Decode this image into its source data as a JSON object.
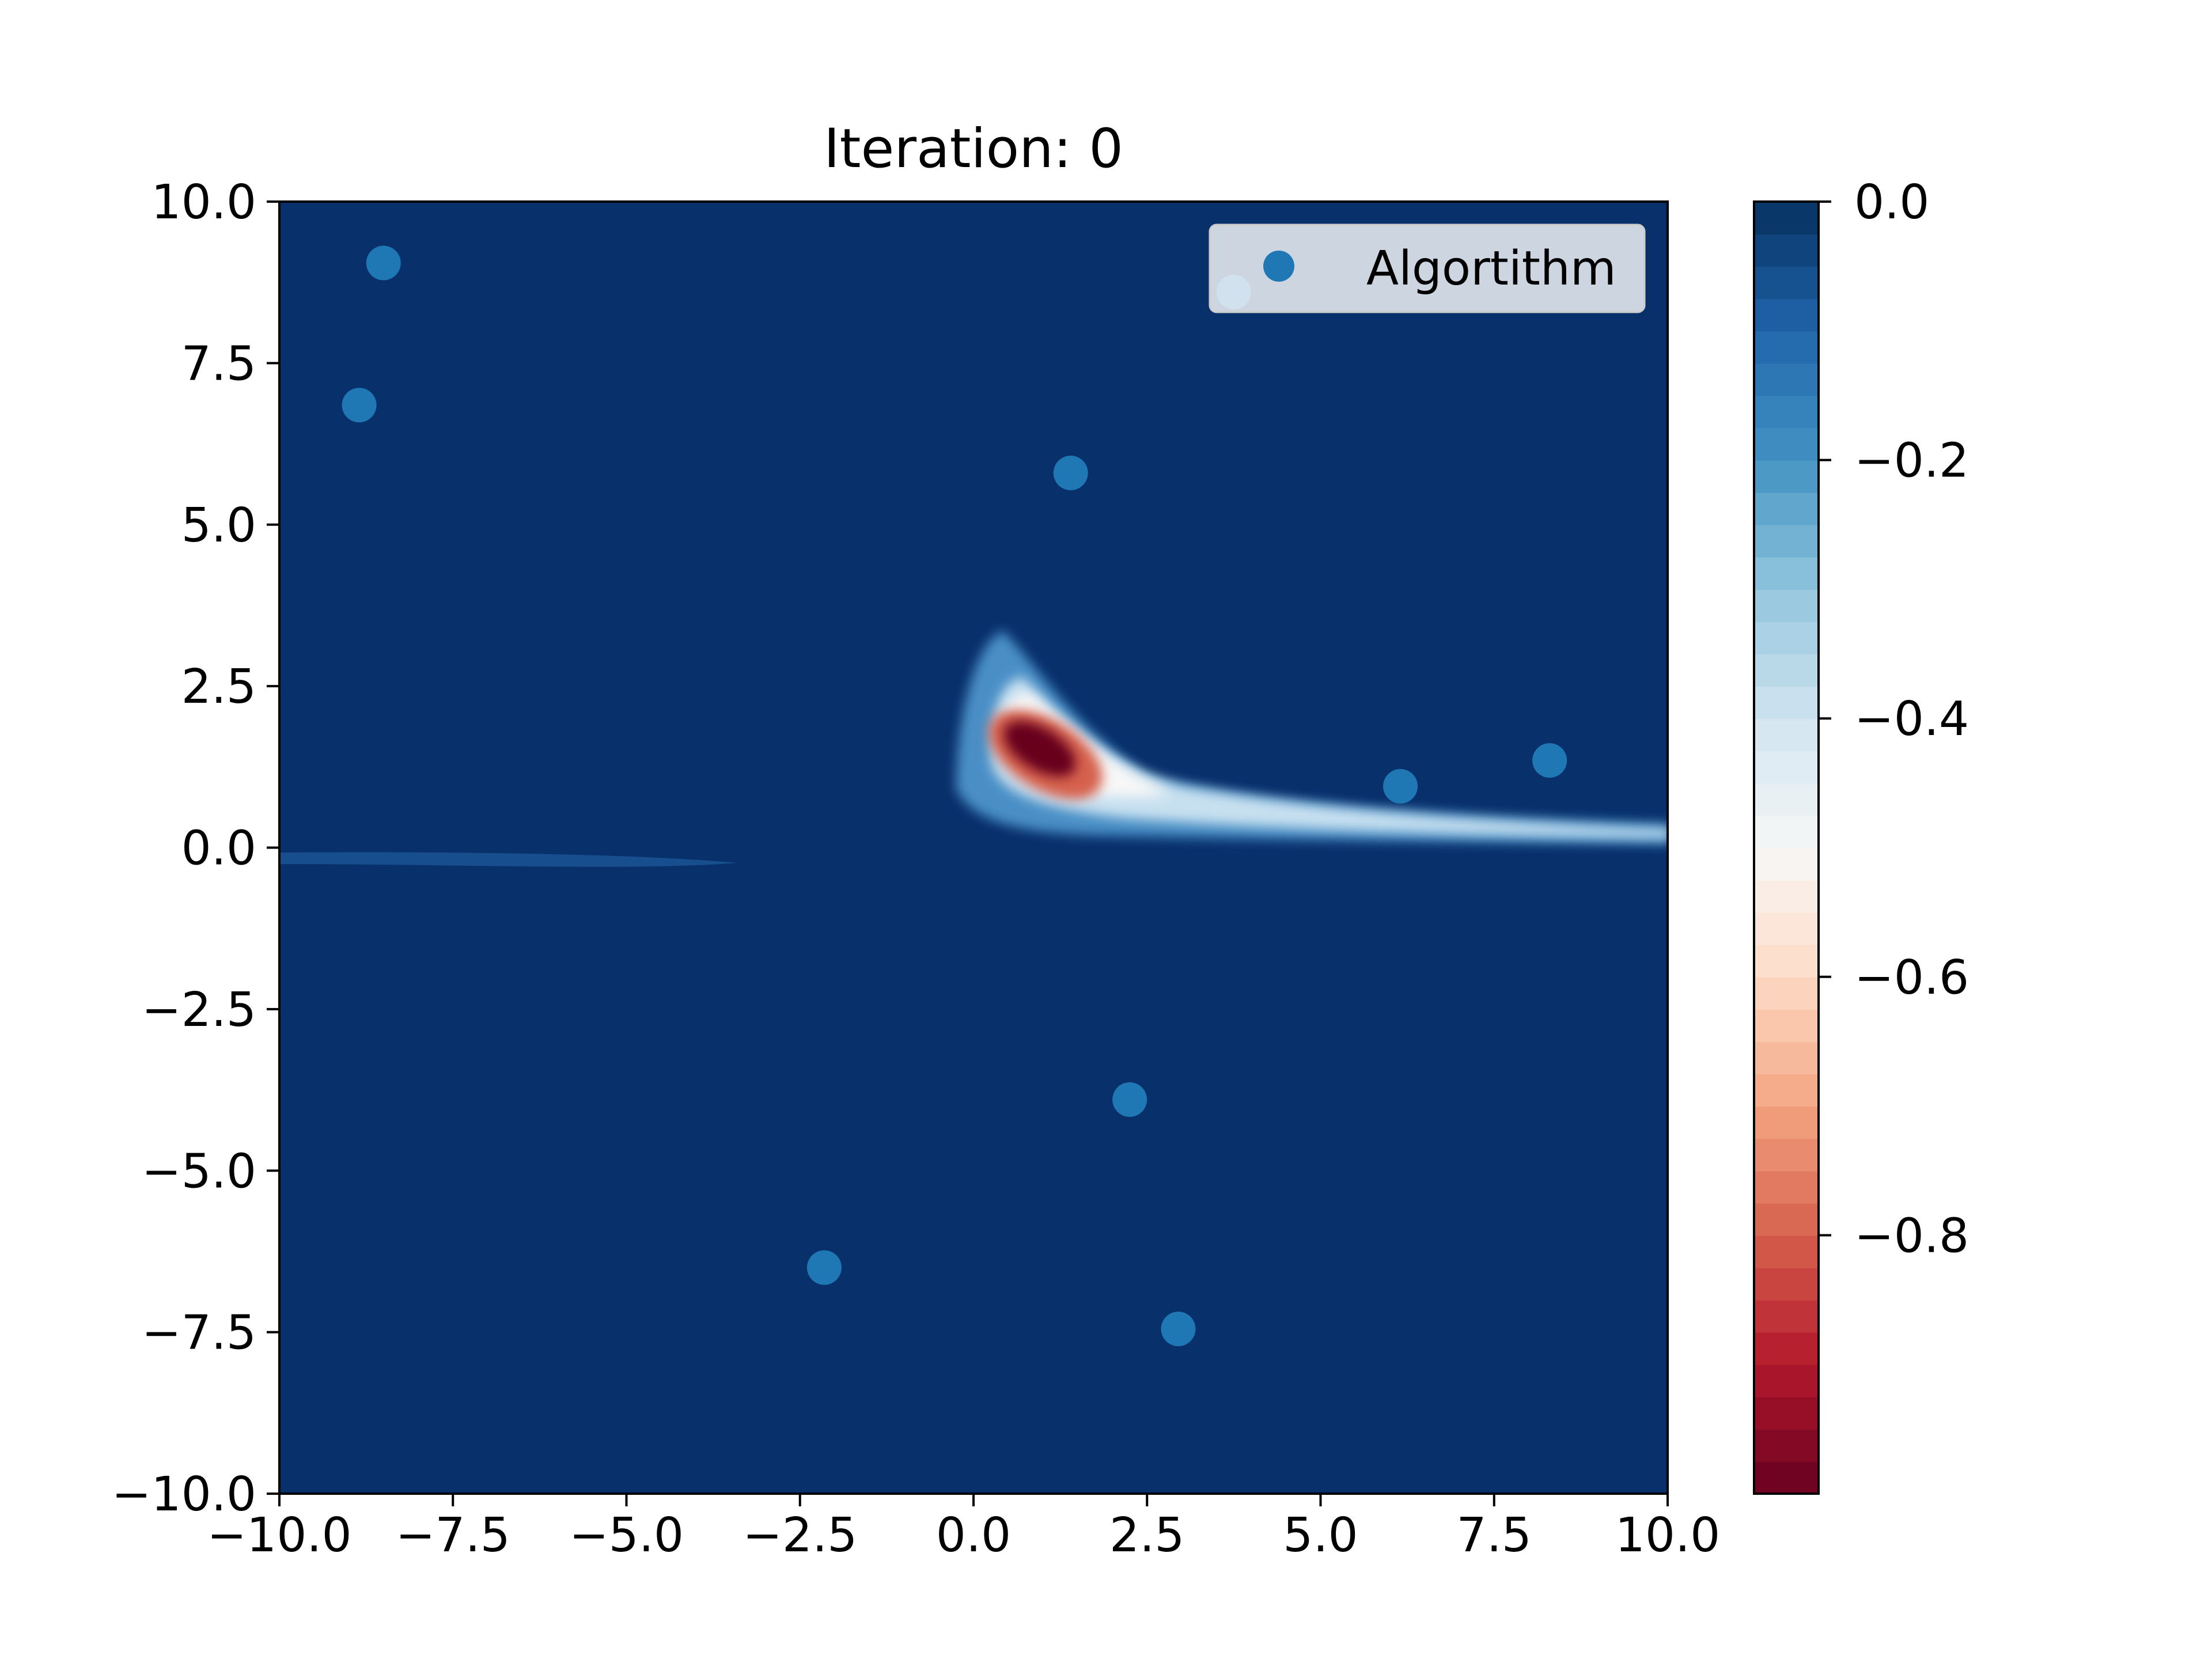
{
  "chart_data": {
    "type": "scatter",
    "title": "Iteration: 0",
    "xlabel": "",
    "ylabel": "",
    "xlim": [
      -10,
      10
    ],
    "ylim": [
      -10,
      10
    ],
    "x_ticks": [
      "−10.0",
      "−7.5",
      "−5.0",
      "−2.5",
      "0.0",
      "2.5",
      "5.0",
      "7.5",
      "10.0"
    ],
    "y_ticks": [
      "−10.0",
      "−7.5",
      "−5.0",
      "−2.5",
      "0.0",
      "2.5",
      "5.0",
      "7.5",
      "10.0"
    ],
    "x_tick_values": [
      -10,
      -7.5,
      -5,
      -2.5,
      0,
      2.5,
      5,
      7.5,
      10
    ],
    "y_tick_values": [
      -10,
      -7.5,
      -5,
      -2.5,
      0,
      2.5,
      5,
      7.5,
      10
    ],
    "grid": false,
    "legend": {
      "placement": "upper-right",
      "entries": [
        "Algortithm"
      ]
    },
    "series": [
      {
        "name": "Algortithm",
        "color": "#1f77b4",
        "x": [
          -8.5,
          -8.85,
          1.4,
          3.75,
          6.15,
          8.3,
          2.25,
          -2.15,
          2.95
        ],
        "y": [
          9.05,
          6.85,
          5.8,
          8.6,
          0.95,
          1.35,
          -3.9,
          -6.5,
          -7.45
        ]
      }
    ],
    "background_field": {
      "colormap": "RdBu",
      "colormap_colors": [
        "#67001f",
        "#b2182b",
        "#d6604d",
        "#f4a582",
        "#fddbc7",
        "#f7f7f7",
        "#d1e5f0",
        "#92c5de",
        "#4393c3",
        "#2166ac",
        "#053061"
      ],
      "background_color": "#08306b",
      "minimum_location": [
        1.0,
        1.5
      ]
    },
    "colorbar": {
      "range": [
        -1.0,
        0.0
      ],
      "ticks": [
        "0.0",
        "−0.2",
        "−0.4",
        "−0.6",
        "−0.8"
      ],
      "tick_values": [
        0.0,
        -0.2,
        -0.4,
        -0.6,
        -0.8
      ]
    }
  }
}
